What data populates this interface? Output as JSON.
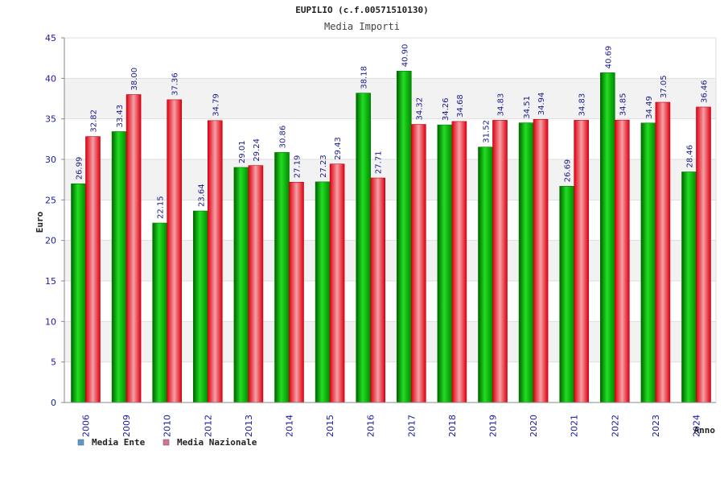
{
  "chart_data": {
    "type": "bar",
    "title": "EUPILIO (c.f.00571510130)",
    "subtitle": "Media Importi",
    "xlabel": "Anno",
    "ylabel": "Euro",
    "ylim": [
      0,
      45
    ],
    "yticks": [
      0,
      5,
      10,
      15,
      20,
      25,
      30,
      35,
      40,
      45
    ],
    "grid": true,
    "legend_position": "bottom-left",
    "categories": [
      "2006",
      "2009",
      "2010",
      "2012",
      "2013",
      "2014",
      "2015",
      "2016",
      "2017",
      "2018",
      "2019",
      "2020",
      "2021",
      "2022",
      "2023",
      "2024"
    ],
    "series": [
      {
        "name": "Media Ente",
        "color": "#00b000",
        "legend_color": "#5b9bd5",
        "values": [
          26.99,
          33.43,
          22.15,
          23.64,
          29.01,
          30.86,
          27.23,
          38.18,
          40.9,
          34.26,
          31.52,
          34.51,
          26.69,
          40.69,
          34.49,
          28.46
        ],
        "labels": [
          "26.99",
          "33.43",
          "22.15",
          "23.64",
          "29.01",
          "30.86",
          "27.23",
          "38.18",
          "40.90",
          "34.26",
          "31.52",
          "34.51",
          "26.69",
          "40.69",
          "34.49",
          "28.46"
        ]
      },
      {
        "name": "Media Nazionale",
        "color": "#e8202a",
        "legend_color": "#d9709b",
        "values": [
          32.82,
          38.0,
          37.36,
          34.79,
          29.24,
          27.19,
          29.43,
          27.71,
          34.32,
          34.68,
          34.83,
          34.94,
          34.83,
          34.85,
          37.05,
          36.46
        ],
        "labels": [
          "32.82",
          "38.00",
          "37.36",
          "34.79",
          "29.24",
          "27.19",
          "29.43",
          "27.71",
          "34.32",
          "34.68",
          "34.83",
          "34.94",
          "34.83",
          "34.85",
          "37.05",
          "36.46"
        ]
      }
    ]
  }
}
